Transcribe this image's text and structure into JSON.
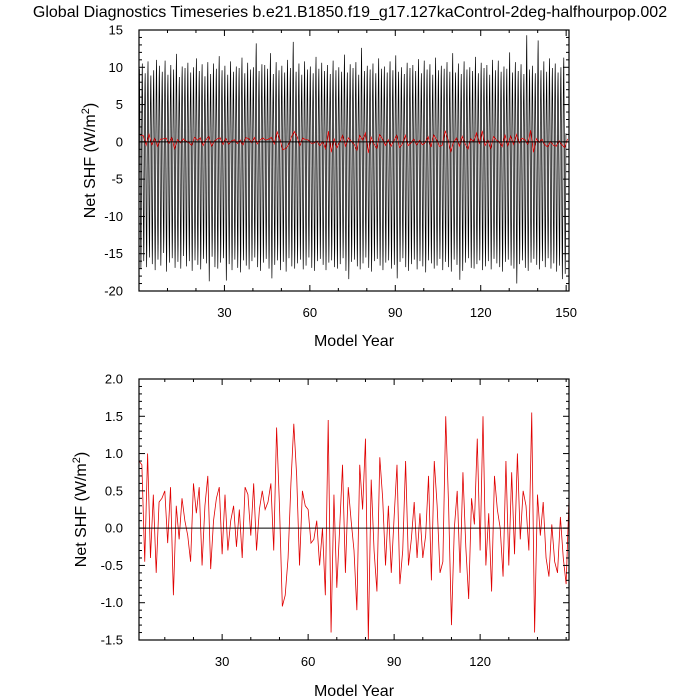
{
  "title": "Global Diagnostics Timeseries b.e21.B1850.f19_g17.127kaControl-2deg-halfhourpop.002",
  "chart_data": [
    {
      "type": "line",
      "xlabel": "Model Year",
      "ylabel": "Net SHF (W/m",
      "ylabel_sup": "2",
      "ylabel_close": ")",
      "xlim": [
        0,
        151
      ],
      "ylim": [
        -20,
        15
      ],
      "xticks": [
        30,
        60,
        90,
        120,
        150
      ],
      "xtick_labels": [
        "30",
        "60",
        "90",
        "120",
        "150"
      ],
      "yticks": [
        15,
        10,
        5,
        0,
        -5,
        -10,
        -15,
        -20
      ],
      "ytick_labels": [
        "15",
        "10",
        "5",
        "0",
        "-5",
        "-10",
        "-15",
        "-20"
      ],
      "zero_line": true,
      "series": [
        {
          "kind": "monthly",
          "color": "#000000",
          "seasonal_max": [
            9.8,
            10.5,
            9.2,
            10.8,
            8.9,
            9.6,
            11.0,
            10.2,
            9.4,
            10.9,
            9.0,
            10.3,
            9.7,
            11.8,
            8.7,
            10.1,
            9.9,
            10.6,
            9.3,
            10.0,
            11.2,
            9.5,
            10.4,
            8.8,
            10.7,
            9.1,
            10.5,
            9.8,
            11.5,
            9.6,
            10.2,
            9.0,
            10.8,
            9.4,
            10.1,
            9.9,
            11.3,
            9.2,
            10.6,
            9.7,
            10.0,
            13.2,
            9.5,
            10.4,
            10.3,
            9.8,
            11.9,
            9.1,
            10.7,
            9.6,
            10.2,
            9.3,
            11.0,
            9.9,
            13.4,
            9.4,
            10.5,
            9.0,
            10.8,
            9.7,
            10.1,
            9.2,
            11.4,
            9.8,
            10.6,
            9.5,
            10.3,
            9.1,
            10.9,
            9.6,
            10.0,
            9.4,
            11.7,
            9.3,
            10.4,
            9.9,
            10.7,
            9.0,
            12.6,
            9.5,
            10.2,
            9.7,
            10.5,
            9.2,
            11.2,
            9.8,
            10.1,
            9.3,
            10.8,
            9.6,
            11.6,
            9.4,
            10.0,
            9.1,
            10.6,
            9.9,
            10.3,
            9.5,
            11.1,
            9.2,
            10.9,
            9.7,
            10.4,
            9.0,
            11.3,
            9.6,
            10.2,
            9.8,
            10.7,
            9.4,
            11.9,
            9.3,
            10.5,
            9.1,
            10.8,
            9.7,
            10.0,
            9.5,
            11.4,
            9.2,
            10.6,
            9.9,
            10.3,
            9.0,
            11.0,
            9.6,
            10.9,
            9.4,
            10.1,
            9.8,
            12.0,
            9.3,
            10.7,
            9.5,
            10.4,
            9.1,
            14.3,
            9.7,
            10.2,
            9.2,
            13.6,
            9.6,
            10.8,
            9.4,
            11.2,
            9.9,
            10.5,
            9.3,
            10.0,
            11.3
          ],
          "seasonal_min": [
            -17.0,
            -16.0,
            -16.8,
            -15.5,
            -16.4,
            -17.2,
            -15.8,
            -16.6,
            -14.9,
            -17.4,
            -16.2,
            -15.6,
            -16.9,
            -16.1,
            -17.0,
            -15.3,
            -16.7,
            -16.0,
            -17.3,
            -15.9,
            -16.5,
            -17.1,
            -15.7,
            -16.3,
            -18.7,
            -15.4,
            -16.8,
            -17.0,
            -16.2,
            -15.6,
            -18.6,
            -16.4,
            -17.2,
            -15.8,
            -16.9,
            -17.5,
            -15.9,
            -16.6,
            -17.1,
            -16.0,
            -15.5,
            -16.8,
            -17.3,
            -16.2,
            -15.7,
            -17.0,
            -18.3,
            -16.5,
            -15.9,
            -17.2,
            -16.1,
            -17.4,
            -15.6,
            -16.7,
            -17.0,
            -16.3,
            -15.8,
            -17.1,
            -16.6,
            -15.5,
            -16.9,
            -17.3,
            -16.0,
            -15.7,
            -16.5,
            -17.2,
            -16.2,
            -15.9,
            -16.8,
            -17.0,
            -16.4,
            -15.6,
            -17.3,
            -18.4,
            -16.1,
            -15.8,
            -16.7,
            -17.1,
            -16.3,
            -15.5,
            -16.9,
            -17.4,
            -16.0,
            -15.7,
            -16.6,
            -17.2,
            -16.2,
            -15.9,
            -17.0,
            -16.5,
            -18.3,
            -16.1,
            -15.6,
            -16.8,
            -17.3,
            -16.4,
            -15.8,
            -17.1,
            -16.0,
            -16.7,
            -17.5,
            -15.9,
            -16.3,
            -17.0,
            -16.6,
            -15.7,
            -17.2,
            -16.1,
            -16.8,
            -17.4,
            -15.8,
            -16.5,
            -18.5,
            -17.3,
            -16.2,
            -15.6,
            -16.9,
            -17.0,
            -16.4,
            -15.9,
            -17.2,
            -16.7,
            -16.0,
            -17.1,
            -15.7,
            -16.3,
            -16.8,
            -17.4,
            -16.1,
            -15.8,
            -16.6,
            -17.0,
            -19.0,
            -16.4,
            -15.9,
            -16.9,
            -17.3,
            -16.2,
            -15.7,
            -16.5,
            -17.1,
            -16.0,
            -16.8,
            -15.6,
            -17.0,
            -16.3,
            -17.4,
            -16.6,
            -18.4,
            -17.7
          ]
        },
        {
          "kind": "annual",
          "color": "#e00000",
          "values": [
            0.9,
            0.85,
            -0.45,
            1.0,
            -0.4,
            0.45,
            -0.6,
            0.35,
            0.4,
            0.5,
            -0.2,
            0.55,
            -0.9,
            0.3,
            -0.15,
            0.4,
            0.1,
            -0.1,
            -0.45,
            0.6,
            0.2,
            0.55,
            -0.5,
            0.3,
            0.7,
            -0.55,
            0.1,
            0.4,
            0.55,
            -0.35,
            0.45,
            -0.3,
            0.1,
            0.3,
            -0.25,
            0.25,
            -0.4,
            0.55,
            0.45,
            -0.1,
            0.6,
            -0.3,
            0.25,
            0.5,
            0.25,
            0.35,
            0.6,
            -0.3,
            1.35,
            0.3,
            -1.05,
            -0.9,
            -0.4,
            0.6,
            1.4,
            0.7,
            -0.5,
            0.5,
            0.3,
            0.25,
            -0.2,
            -0.15,
            0.1,
            -0.5,
            0.0,
            -0.9,
            1.45,
            -1.4,
            0.45,
            -0.8,
            0.0,
            0.85,
            -0.6,
            0.55,
            0.1,
            -0.3,
            -1.1,
            0.85,
            0.25,
            1.2,
            -1.5,
            0.65,
            -0.3,
            -0.85,
            0.95,
            0.4,
            -0.5,
            0.3,
            -0.6,
            0.15,
            0.85,
            -0.75,
            -0.3,
            0.9,
            -0.5,
            -0.15,
            0.35,
            -0.4,
            0.2,
            -0.4,
            -0.1,
            0.7,
            -0.7,
            0.9,
            0.3,
            -0.6,
            -0.45,
            1.5,
            0.3,
            -1.3,
            0.0,
            0.5,
            -0.6,
            0.75,
            -0.25,
            -0.95,
            0.4,
            0.05,
            1.2,
            -0.3,
            1.5,
            -0.5,
            0.2,
            -0.85,
            0.7,
            0.25,
            0.0,
            -0.65,
            0.9,
            -0.5,
            0.75,
            -0.35,
            1.0,
            -0.15,
            0.5,
            0.3,
            -0.3,
            1.55,
            -1.4,
            0.45,
            -0.1,
            0.35,
            -0.4,
            -0.65,
            0.05,
            -0.45,
            -0.6,
            0.15,
            -0.4,
            -0.75,
            0.4
          ]
        }
      ]
    },
    {
      "type": "line",
      "xlabel": "Model Year",
      "ylabel": "Net SHF (W/m",
      "ylabel_sup": "2",
      "ylabel_close": ")",
      "xlim": [
        1,
        151
      ],
      "ylim": [
        -1.5,
        2.0
      ],
      "xticks": [
        30,
        60,
        90,
        120
      ],
      "xtick_labels": [
        "30",
        "60",
        "90",
        "120"
      ],
      "yticks": [
        2.0,
        1.5,
        1.0,
        0.5,
        0.0,
        -0.5,
        -1.0,
        -1.5
      ],
      "ytick_labels": [
        "2.0",
        "1.5",
        "1.0",
        "0.5",
        "0.0",
        "-0.5",
        "-1.0",
        "-1.5"
      ],
      "zero_line": true,
      "series": [
        {
          "kind": "annual",
          "color": "#e00000",
          "values": [
            0.9,
            0.85,
            -0.45,
            1.0,
            -0.4,
            0.45,
            -0.6,
            0.35,
            0.4,
            0.5,
            -0.2,
            0.55,
            -0.9,
            0.3,
            -0.15,
            0.4,
            0.1,
            -0.1,
            -0.45,
            0.6,
            0.2,
            0.55,
            -0.5,
            0.3,
            0.7,
            -0.55,
            0.1,
            0.4,
            0.55,
            -0.35,
            0.45,
            -0.3,
            0.1,
            0.3,
            -0.25,
            0.25,
            -0.4,
            0.55,
            0.45,
            -0.1,
            0.6,
            -0.3,
            0.25,
            0.5,
            0.25,
            0.35,
            0.6,
            -0.3,
            1.35,
            0.3,
            -1.05,
            -0.9,
            -0.4,
            0.6,
            1.4,
            0.7,
            -0.5,
            0.5,
            0.3,
            0.25,
            -0.2,
            -0.15,
            0.1,
            -0.5,
            0.0,
            -0.9,
            1.45,
            -1.4,
            0.45,
            -0.8,
            0.0,
            0.85,
            -0.6,
            0.55,
            0.1,
            -0.3,
            -1.1,
            0.85,
            0.25,
            1.2,
            -1.5,
            0.65,
            -0.3,
            -0.85,
            0.95,
            0.4,
            -0.5,
            0.3,
            -0.6,
            0.15,
            0.85,
            -0.75,
            -0.3,
            0.9,
            -0.5,
            -0.15,
            0.35,
            -0.4,
            0.2,
            -0.4,
            -0.1,
            0.7,
            -0.7,
            0.9,
            0.3,
            -0.6,
            -0.45,
            1.5,
            0.3,
            -1.3,
            0.0,
            0.5,
            -0.6,
            0.75,
            -0.25,
            -0.95,
            0.4,
            0.05,
            1.2,
            -0.3,
            1.5,
            -0.5,
            0.2,
            -0.85,
            0.7,
            0.25,
            0.0,
            -0.65,
            0.9,
            -0.5,
            0.75,
            -0.35,
            1.0,
            -0.15,
            0.5,
            0.3,
            -0.3,
            1.55,
            -1.4,
            0.45,
            -0.1,
            0.35,
            -0.4,
            -0.65,
            0.05,
            -0.45,
            -0.6,
            0.15,
            -0.4,
            -0.75,
            0.4
          ]
        }
      ]
    }
  ]
}
